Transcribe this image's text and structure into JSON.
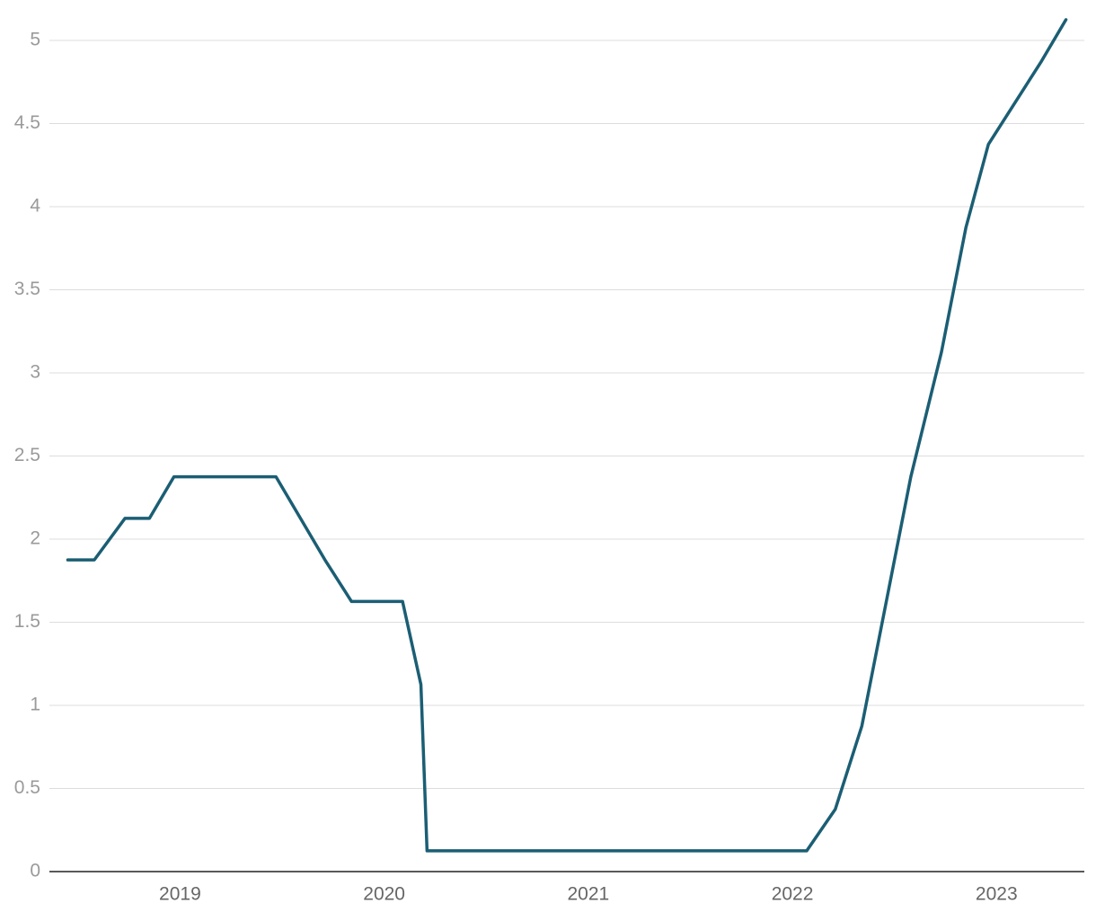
{
  "chart_data": {
    "type": "line",
    "x": [
      2018.45,
      2018.58,
      2018.73,
      2018.85,
      2018.97,
      2019.47,
      2019.59,
      2019.71,
      2019.84,
      2020.09,
      2020.18,
      2020.21,
      2022.07,
      2022.21,
      2022.34,
      2022.58,
      2022.73,
      2022.85,
      2022.96,
      2023.22,
      2023.34
    ],
    "values": [
      1.875,
      1.875,
      2.125,
      2.125,
      2.375,
      2.375,
      2.125,
      1.875,
      1.625,
      1.625,
      1.125,
      0.125,
      0.125,
      0.375,
      0.875,
      2.375,
      3.125,
      3.875,
      4.375,
      4.875,
      5.125
    ],
    "color": "#1b5e74",
    "xlim": [
      2018.36,
      2023.43
    ],
    "xticks": [
      2019,
      2020,
      2021,
      2022,
      2023
    ],
    "ylim": [
      0,
      5.13
    ],
    "yticks": [
      0,
      0.5,
      1,
      1.5,
      2,
      2.5,
      3,
      3.5,
      4,
      4.5,
      5
    ],
    "grid": true
  }
}
